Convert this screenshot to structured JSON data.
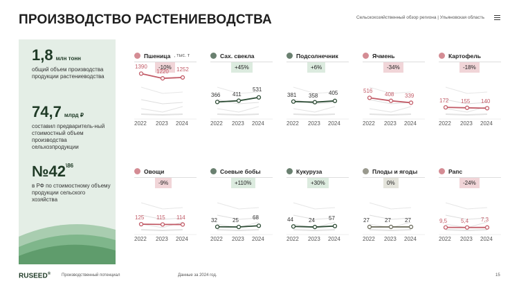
{
  "header": {
    "title": "ПРОИЗВОДСТВО РАСТЕНИЕВОДСТВА",
    "breadcrumb": "Сельскохозяйственный обзор региона  |  Ульяновская область"
  },
  "stats": [
    {
      "value": "1,8",
      "unit": "млн тонн",
      "desc": "общий объем производства продукции растениеводства"
    },
    {
      "value": "74,7",
      "unit": "млрд ₽",
      "desc": "составил предваритель-ный стоимостный объем производства сельхозпродукции"
    },
    {
      "value": "№42",
      "sup": "\\86",
      "desc": "в РФ по стоимостному объему продукции сельского хозяйства"
    }
  ],
  "colors": {
    "red": "#c25b67",
    "green": "#2b4a33",
    "neutral": "#6e6e5e",
    "red_bg": "#f1d5d8",
    "green_bg": "#dcebdf",
    "neutral_bg": "#e4e4dc"
  },
  "chart_data": {
    "type": "line",
    "x": [
      "2022",
      "2023",
      "2024"
    ],
    "panels": [
      {
        "name": "Пшеница",
        "unit": ", тыс. т",
        "icon": "wheat-icon",
        "change": "-10%",
        "trend": "red",
        "values": [
          1390,
          1220,
          1252
        ]
      },
      {
        "name": "Сах. свекла",
        "icon": "beet-icon",
        "change": "+45%",
        "trend": "green",
        "values": [
          366,
          411,
          531
        ]
      },
      {
        "name": "Подсолнечник",
        "icon": "sunflower-icon",
        "change": "+6%",
        "trend": "green",
        "values": [
          381,
          358,
          405
        ]
      },
      {
        "name": "Ячмень",
        "icon": "barley-icon",
        "change": "-34%",
        "trend": "red",
        "values": [
          516,
          408,
          339
        ]
      },
      {
        "name": "Картофель",
        "icon": "potato-icon",
        "change": "-18%",
        "trend": "red",
        "values": [
          172,
          155,
          140
        ]
      },
      {
        "name": "Овощи",
        "icon": "vegetable-icon",
        "change": "-9%",
        "trend": "red",
        "values": [
          125,
          115,
          114
        ]
      },
      {
        "name": "Соевые бобы",
        "icon": "soybean-icon",
        "change": "+110%",
        "trend": "green",
        "values": [
          32,
          25,
          68
        ]
      },
      {
        "name": "Кукуруза",
        "icon": "corn-icon",
        "change": "+30%",
        "trend": "green",
        "values": [
          44,
          24,
          57
        ]
      },
      {
        "name": "Плоды и ягоды",
        "icon": "fruit-icon",
        "change": "0%",
        "trend": "neutral",
        "values": [
          27,
          27,
          27
        ]
      },
      {
        "name": "Рапс",
        "icon": "rapeseed-icon",
        "change": "-24%",
        "trend": "red",
        "values": [
          "9,5",
          "5,4",
          "7,3"
        ]
      }
    ]
  },
  "footer": {
    "brand": "RUSEED",
    "reg": "®",
    "section": "Производственный потенциал",
    "note": "Данные за 2024 год.",
    "page": "15"
  }
}
